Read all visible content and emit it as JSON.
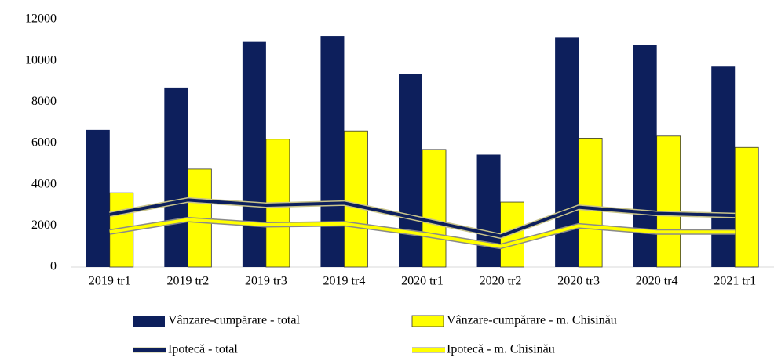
{
  "chart_data": {
    "type": "bar-line",
    "categories": [
      "2019 tr1",
      "2019 tr2",
      "2019 tr3",
      "2019 tr4",
      "2020 tr1",
      "2020 tr2",
      "2020 tr3",
      "2020 tr4",
      "2021 tr1"
    ],
    "series": [
      {
        "name": "Vânzare-cumpărare - total",
        "type": "bar",
        "color": "#0d1f5c",
        "values": [
          6650,
          8700,
          10950,
          11200,
          9350,
          5450,
          11150,
          10750,
          9750
        ]
      },
      {
        "name": "Vânzare-cumpărare - m. Chisinău",
        "type": "bar",
        "color": "#ffff00",
        "values": [
          3600,
          4750,
          6200,
          6600,
          5700,
          3150,
          6250,
          6350,
          5800
        ]
      },
      {
        "name": "Ipotecă - total",
        "type": "line",
        "color": "#0d1f5c",
        "values": [
          2550,
          3250,
          3000,
          3100,
          2300,
          1500,
          2900,
          2600,
          2500
        ]
      },
      {
        "name": "Ipotecă - m. Chisinău",
        "type": "line",
        "color": "#ffff00",
        "values": [
          1700,
          2300,
          2050,
          2100,
          1600,
          1000,
          2000,
          1700,
          1700
        ]
      }
    ],
    "ylim": [
      0,
      12000
    ],
    "yticks": [
      0,
      2000,
      4000,
      6000,
      8000,
      10000,
      12000
    ]
  }
}
